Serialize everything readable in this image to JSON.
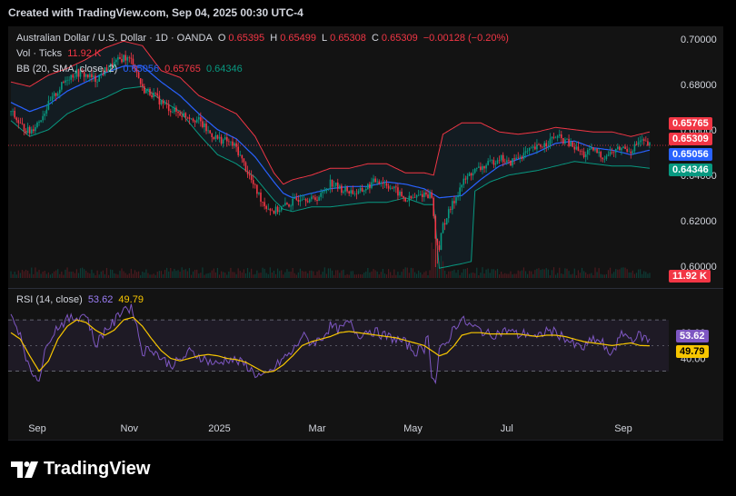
{
  "header": {
    "text": "Created with TradingView.com, Sep 04, 2025 00:30 UTC-4"
  },
  "legend": {
    "symbol": "Australian Dollar / U.S. Dollar · 1D · OANDA",
    "o_label": "O",
    "o_value": "0.65395",
    "h_label": "H",
    "h_value": "0.65499",
    "l_label": "L",
    "l_value": "0.65308",
    "c_label": "C",
    "c_value": "0.65309",
    "change": "−0.00128 (−0.20%)",
    "vol_label": "Vol · Ticks",
    "vol_value": "11.92 K",
    "bb_label": "BB (20, SMA, close, 2)",
    "bb_basis": "0.65056",
    "bb_upper": "0.65765",
    "bb_lower": "0.64346",
    "rsi_label": "RSI (14, close)",
    "rsi_value": "53.62",
    "rsi_ma": "49.79"
  },
  "price_tags": {
    "upper": "0.65765",
    "close": "0.65309",
    "basis": "0.65056",
    "lower": "0.64346",
    "volume": "11.92 K",
    "rsi": "53.62",
    "rsi_ma": "49.79"
  },
  "colors": {
    "up": "#089981",
    "down": "#f23645",
    "bb_basis": "#2962ff",
    "bb_upper": "#f23645",
    "bb_lower": "#089981",
    "rsi": "#7e57c2",
    "rsi_ma": "#f7c600"
  },
  "footer": {
    "brand": "TradingView"
  },
  "chart_data": {
    "type": "candlestick",
    "y_ticks": [
      "0.70000",
      "0.68000",
      "0.66000",
      "0.64000",
      "0.62000",
      "0.60000"
    ],
    "ylim": [
      0.5935,
      0.7035
    ],
    "x_ticks": [
      "Sep",
      "Nov",
      "2025",
      "Mar",
      "May",
      "Jul",
      "Sep"
    ],
    "rsi_ticks": [
      "60.00",
      "40.00"
    ],
    "rsi_ylim": [
      8.5,
      92
    ],
    "rsi_bands": [
      70,
      30
    ],
    "anchors_close": [
      [
        0,
        0.668
      ],
      [
        5,
        0.662
      ],
      [
        10,
        0.659
      ],
      [
        15,
        0.664
      ],
      [
        20,
        0.671
      ],
      [
        25,
        0.677
      ],
      [
        30,
        0.683
      ],
      [
        35,
        0.685
      ],
      [
        40,
        0.684
      ],
      [
        45,
        0.682
      ],
      [
        50,
        0.686
      ],
      [
        55,
        0.689
      ],
      [
        60,
        0.692
      ],
      [
        65,
        0.69
      ],
      [
        70,
        0.678
      ],
      [
        75,
        0.676
      ],
      [
        80,
        0.672
      ],
      [
        85,
        0.669
      ],
      [
        90,
        0.667
      ],
      [
        95,
        0.666
      ],
      [
        100,
        0.664
      ],
      [
        105,
        0.659
      ],
      [
        110,
        0.656
      ],
      [
        115,
        0.655
      ],
      [
        120,
        0.652
      ],
      [
        125,
        0.643
      ],
      [
        130,
        0.634
      ],
      [
        135,
        0.627
      ],
      [
        140,
        0.624
      ],
      [
        145,
        0.626
      ],
      [
        150,
        0.628
      ],
      [
        155,
        0.631
      ],
      [
        160,
        0.629
      ],
      [
        165,
        0.631
      ],
      [
        170,
        0.637
      ],
      [
        175,
        0.634
      ],
      [
        180,
        0.633
      ],
      [
        185,
        0.632
      ],
      [
        190,
        0.635
      ],
      [
        195,
        0.638
      ],
      [
        200,
        0.636
      ],
      [
        205,
        0.633
      ],
      [
        210,
        0.629
      ],
      [
        215,
        0.63
      ],
      [
        220,
        0.632
      ],
      [
        224,
        0.631
      ],
      [
        226,
        0.612
      ],
      [
        228,
        0.608
      ],
      [
        230,
        0.618
      ],
      [
        235,
        0.627
      ],
      [
        240,
        0.636
      ],
      [
        245,
        0.641
      ],
      [
        250,
        0.643
      ],
      [
        255,
        0.645
      ],
      [
        260,
        0.648
      ],
      [
        265,
        0.645
      ],
      [
        270,
        0.648
      ],
      [
        275,
        0.65
      ],
      [
        280,
        0.652
      ],
      [
        285,
        0.654
      ],
      [
        290,
        0.657
      ],
      [
        295,
        0.655
      ],
      [
        300,
        0.652
      ],
      [
        305,
        0.649
      ],
      [
        310,
        0.651
      ],
      [
        315,
        0.648
      ],
      [
        320,
        0.65
      ],
      [
        325,
        0.652
      ],
      [
        330,
        0.651
      ],
      [
        335,
        0.655
      ],
      [
        340,
        0.653
      ]
    ],
    "bb_upper": [
      [
        0,
        0.681
      ],
      [
        10,
        0.679
      ],
      [
        20,
        0.684
      ],
      [
        30,
        0.687
      ],
      [
        40,
        0.691
      ],
      [
        50,
        0.696
      ],
      [
        60,
        0.699
      ],
      [
        70,
        0.697
      ],
      [
        80,
        0.686
      ],
      [
        90,
        0.683
      ],
      [
        100,
        0.675
      ],
      [
        110,
        0.671
      ],
      [
        120,
        0.667
      ],
      [
        130,
        0.657
      ],
      [
        140,
        0.641
      ],
      [
        145,
        0.636
      ],
      [
        150,
        0.638
      ],
      [
        160,
        0.64
      ],
      [
        170,
        0.643
      ],
      [
        180,
        0.643
      ],
      [
        190,
        0.645
      ],
      [
        200,
        0.645
      ],
      [
        210,
        0.641
      ],
      [
        220,
        0.641
      ],
      [
        225,
        0.64
      ],
      [
        230,
        0.658
      ],
      [
        240,
        0.663
      ],
      [
        250,
        0.663
      ],
      [
        260,
        0.659
      ],
      [
        270,
        0.658
      ],
      [
        280,
        0.659
      ],
      [
        290,
        0.661
      ],
      [
        300,
        0.66
      ],
      [
        310,
        0.659
      ],
      [
        320,
        0.659
      ],
      [
        330,
        0.657
      ],
      [
        340,
        0.659
      ]
    ],
    "bb_basis": [
      [
        0,
        0.672
      ],
      [
        10,
        0.668
      ],
      [
        20,
        0.671
      ],
      [
        30,
        0.677
      ],
      [
        40,
        0.681
      ],
      [
        50,
        0.685
      ],
      [
        60,
        0.688
      ],
      [
        70,
        0.688
      ],
      [
        80,
        0.681
      ],
      [
        90,
        0.675
      ],
      [
        100,
        0.667
      ],
      [
        110,
        0.66
      ],
      [
        120,
        0.656
      ],
      [
        130,
        0.648
      ],
      [
        140,
        0.637
      ],
      [
        145,
        0.632
      ],
      [
        150,
        0.63
      ],
      [
        160,
        0.632
      ],
      [
        170,
        0.634
      ],
      [
        180,
        0.635
      ],
      [
        190,
        0.635
      ],
      [
        200,
        0.637
      ],
      [
        210,
        0.636
      ],
      [
        220,
        0.634
      ],
      [
        228,
        0.63
      ],
      [
        240,
        0.631
      ],
      [
        250,
        0.638
      ],
      [
        260,
        0.644
      ],
      [
        270,
        0.647
      ],
      [
        280,
        0.65
      ],
      [
        290,
        0.654
      ],
      [
        300,
        0.655
      ],
      [
        310,
        0.652
      ],
      [
        320,
        0.651
      ],
      [
        330,
        0.649
      ],
      [
        340,
        0.651
      ]
    ],
    "bb_lower": [
      [
        0,
        0.664
      ],
      [
        10,
        0.657
      ],
      [
        20,
        0.66
      ],
      [
        30,
        0.667
      ],
      [
        40,
        0.671
      ],
      [
        50,
        0.674
      ],
      [
        60,
        0.678
      ],
      [
        70,
        0.679
      ],
      [
        80,
        0.673
      ],
      [
        90,
        0.668
      ],
      [
        100,
        0.658
      ],
      [
        110,
        0.649
      ],
      [
        120,
        0.645
      ],
      [
        130,
        0.639
      ],
      [
        140,
        0.629
      ],
      [
        145,
        0.625
      ],
      [
        150,
        0.624
      ],
      [
        160,
        0.626
      ],
      [
        170,
        0.626
      ],
      [
        180,
        0.627
      ],
      [
        190,
        0.628
      ],
      [
        200,
        0.628
      ],
      [
        210,
        0.63
      ],
      [
        220,
        0.627
      ],
      [
        225,
        0.627
      ],
      [
        228,
        0.599
      ],
      [
        240,
        0.601
      ],
      [
        245,
        0.602
      ],
      [
        247,
        0.633
      ],
      [
        255,
        0.637
      ],
      [
        265,
        0.64
      ],
      [
        280,
        0.642
      ],
      [
        290,
        0.644
      ],
      [
        300,
        0.646
      ],
      [
        310,
        0.645
      ],
      [
        320,
        0.644
      ],
      [
        330,
        0.644
      ],
      [
        340,
        0.643
      ]
    ],
    "rsi_anchors": [
      [
        0,
        72
      ],
      [
        5,
        60
      ],
      [
        10,
        30
      ],
      [
        15,
        25
      ],
      [
        20,
        55
      ],
      [
        25,
        65
      ],
      [
        30,
        70
      ],
      [
        35,
        72
      ],
      [
        40,
        75
      ],
      [
        45,
        50
      ],
      [
        50,
        62
      ],
      [
        55,
        68
      ],
      [
        60,
        80
      ],
      [
        65,
        78
      ],
      [
        70,
        45
      ],
      [
        75,
        48
      ],
      [
        80,
        40
      ],
      [
        85,
        35
      ],
      [
        90,
        38
      ],
      [
        95,
        45
      ],
      [
        100,
        42
      ],
      [
        105,
        38
      ],
      [
        110,
        35
      ],
      [
        115,
        40
      ],
      [
        120,
        38
      ],
      [
        125,
        35
      ],
      [
        130,
        28
      ],
      [
        135,
        25
      ],
      [
        140,
        32
      ],
      [
        145,
        40
      ],
      [
        150,
        45
      ],
      [
        155,
        58
      ],
      [
        160,
        52
      ],
      [
        165,
        55
      ],
      [
        170,
        65
      ],
      [
        175,
        62
      ],
      [
        180,
        68
      ],
      [
        185,
        58
      ],
      [
        190,
        62
      ],
      [
        195,
        60
      ],
      [
        200,
        57
      ],
      [
        205,
        55
      ],
      [
        210,
        52
      ],
      [
        215,
        45
      ],
      [
        220,
        48
      ],
      [
        222,
        60
      ],
      [
        224,
        28
      ],
      [
        226,
        20
      ],
      [
        228,
        45
      ],
      [
        232,
        52
      ],
      [
        236,
        65
      ],
      [
        240,
        70
      ],
      [
        245,
        65
      ],
      [
        250,
        62
      ],
      [
        255,
        58
      ],
      [
        260,
        60
      ],
      [
        265,
        62
      ],
      [
        270,
        58
      ],
      [
        275,
        60
      ],
      [
        280,
        55
      ],
      [
        285,
        62
      ],
      [
        290,
        60
      ],
      [
        295,
        56
      ],
      [
        300,
        50
      ],
      [
        305,
        48
      ],
      [
        310,
        55
      ],
      [
        315,
        52
      ],
      [
        318,
        42
      ],
      [
        322,
        50
      ],
      [
        326,
        60
      ],
      [
        330,
        55
      ],
      [
        335,
        58
      ],
      [
        340,
        53.6
      ]
    ],
    "rsi_ma_anchors": [
      [
        0,
        60
      ],
      [
        5,
        55
      ],
      [
        10,
        42
      ],
      [
        15,
        30
      ],
      [
        20,
        38
      ],
      [
        25,
        55
      ],
      [
        30,
        65
      ],
      [
        35,
        70
      ],
      [
        40,
        68
      ],
      [
        45,
        62
      ],
      [
        50,
        58
      ],
      [
        55,
        62
      ],
      [
        60,
        70
      ],
      [
        65,
        72
      ],
      [
        70,
        65
      ],
      [
        75,
        55
      ],
      [
        80,
        46
      ],
      [
        85,
        40
      ],
      [
        90,
        38
      ],
      [
        95,
        40
      ],
      [
        100,
        42
      ],
      [
        105,
        43
      ],
      [
        110,
        42
      ],
      [
        115,
        40
      ],
      [
        120,
        39
      ],
      [
        125,
        37
      ],
      [
        130,
        33
      ],
      [
        135,
        29
      ],
      [
        140,
        30
      ],
      [
        145,
        35
      ],
      [
        150,
        42
      ],
      [
        155,
        50
      ],
      [
        160,
        53
      ],
      [
        165,
        55
      ],
      [
        170,
        57
      ],
      [
        175,
        60
      ],
      [
        180,
        61
      ],
      [
        185,
        60
      ],
      [
        190,
        59
      ],
      [
        195,
        58
      ],
      [
        200,
        57
      ],
      [
        205,
        56
      ],
      [
        210,
        54
      ],
      [
        215,
        52
      ],
      [
        220,
        50
      ],
      [
        224,
        46
      ],
      [
        228,
        42
      ],
      [
        232,
        44
      ],
      [
        236,
        50
      ],
      [
        240,
        58
      ],
      [
        245,
        60
      ],
      [
        250,
        60
      ],
      [
        255,
        59
      ],
      [
        260,
        59
      ],
      [
        265,
        59
      ],
      [
        270,
        59
      ],
      [
        275,
        58
      ],
      [
        280,
        57
      ],
      [
        285,
        58
      ],
      [
        290,
        58
      ],
      [
        295,
        57
      ],
      [
        300,
        55
      ],
      [
        305,
        53
      ],
      [
        310,
        52
      ],
      [
        315,
        51
      ],
      [
        320,
        50
      ],
      [
        325,
        51
      ],
      [
        330,
        52
      ],
      [
        335,
        50
      ],
      [
        340,
        49.8
      ]
    ]
  }
}
